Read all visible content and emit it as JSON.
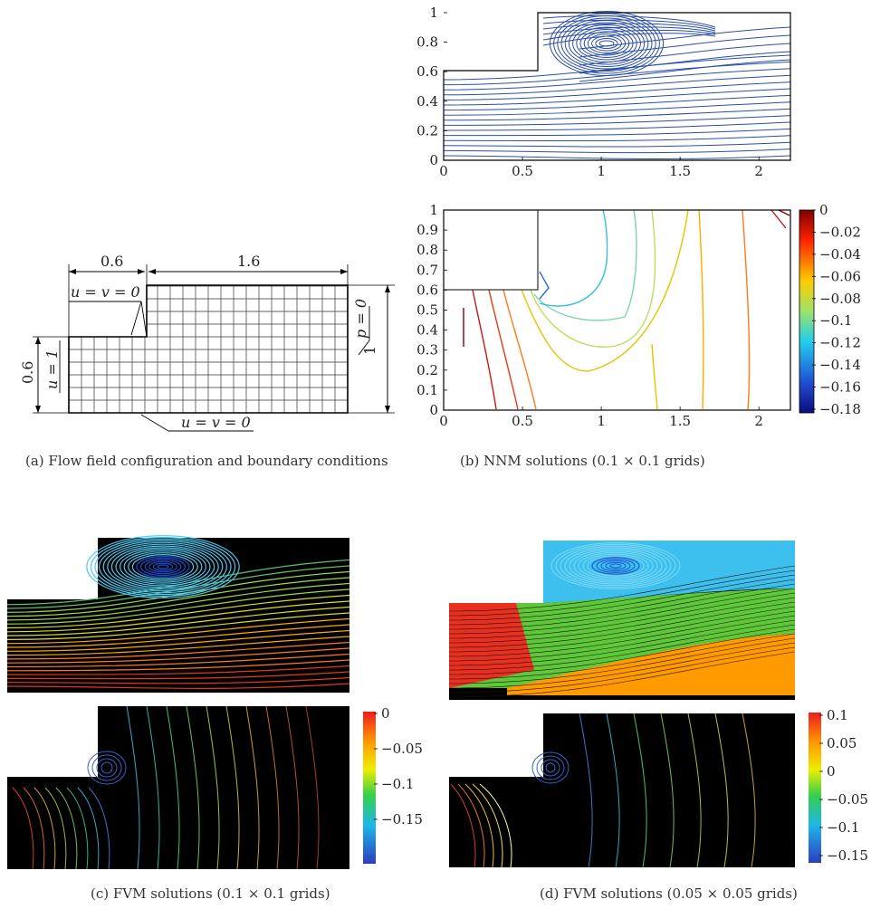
{
  "panel_a": {
    "dims": {
      "inlet_width": "0.6",
      "channel_length": "1.6",
      "inlet_height": "0.6",
      "outlet_height": "1"
    },
    "bc": {
      "top_wall": "u = v = 0",
      "bottom_wall": "u = v = 0",
      "inlet": "u = 1",
      "outlet": "p = 0"
    },
    "caption": "(a)  Flow field configuration and boundary conditions"
  },
  "panel_b": {
    "caption": "(b)  NNM solutions (0.1 × 0.1 grids)",
    "colorbar_ticks": [
      "0",
      "−0.02",
      "−0.04",
      "−0.06",
      "−0.08",
      "−0.1",
      "−0.12",
      "−0.14",
      "−0.16",
      "−0.18"
    ]
  },
  "panel_c": {
    "caption": "(c)  FVM solutions (0.1 × 0.1 grids)",
    "colorbar_ticks": [
      "0",
      "−0.05",
      "−0.1",
      "−0.15"
    ]
  },
  "panel_d": {
    "caption": "(d)  FVM solutions (0.05 × 0.05 grids)",
    "colorbar_ticks": [
      "0.1",
      "0.05",
      "0",
      "−0.05",
      "−0.1",
      "−0.15"
    ]
  },
  "chart_data": [
    {
      "type": "line",
      "panel": "b-streamlines",
      "xlim": [
        0,
        2.2
      ],
      "ylim": [
        0,
        1
      ],
      "xticks": [
        "0",
        "0.5",
        "1",
        "1.5",
        "2"
      ],
      "yticks": [
        "0",
        "0.2",
        "0.4",
        "0.6",
        "0.8",
        "1"
      ],
      "vortex_center": [
        1.1,
        0.77
      ]
    },
    {
      "type": "line",
      "panel": "b-pressure-contours",
      "xlim": [
        0,
        2.2
      ],
      "ylim": [
        0,
        1
      ],
      "xticks": [
        "0",
        "0.5",
        "1",
        "1.5",
        "2"
      ],
      "yticks": [
        "0",
        "0.1",
        "0.2",
        "0.3",
        "0.4",
        "0.5",
        "0.6",
        "0.7",
        "0.8",
        "0.9",
        "1"
      ],
      "colorbar_range": [
        -0.18,
        0
      ]
    }
  ],
  "colors": {
    "streamline": "#2b4ea8",
    "fvm_background": "#000000"
  }
}
